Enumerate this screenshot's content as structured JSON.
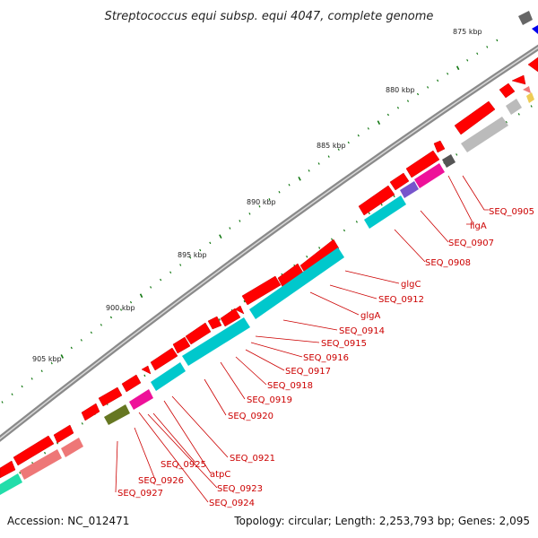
{
  "title": "Streptococcus equi subsp. equi 4047, complete genome",
  "footer": {
    "accession": "Accession: NC_012471",
    "topology": "Topology: circular; Length: 2,253,793 bp; Genes: 2,095"
  },
  "ticks": [
    {
      "label": "875 kbp"
    },
    {
      "label": "880 kbp"
    },
    {
      "label": "885 kbp"
    },
    {
      "label": "890 kbp"
    },
    {
      "label": "895 kbp"
    },
    {
      "label": "900 kbp"
    },
    {
      "label": "905 kbp"
    }
  ],
  "genes": [
    {
      "label": "SEQ_0905"
    },
    {
      "label": "ligA"
    },
    {
      "label": "SEQ_0907"
    },
    {
      "label": "SEQ_0908"
    },
    {
      "label": "glgC"
    },
    {
      "label": "SEQ_0912"
    },
    {
      "label": "glgA"
    },
    {
      "label": "SEQ_0914"
    },
    {
      "label": "SEQ_0915"
    },
    {
      "label": "SEQ_0916"
    },
    {
      "label": "SEQ_0917"
    },
    {
      "label": "SEQ_0918"
    },
    {
      "label": "SEQ_0919"
    },
    {
      "label": "SEQ_0920"
    },
    {
      "label": "SEQ_0921"
    },
    {
      "label": "SEQ_0925"
    },
    {
      "label": "atpC"
    },
    {
      "label": "SEQ_0926"
    },
    {
      "label": "SEQ_0923"
    },
    {
      "label": "SEQ_0927"
    },
    {
      "label": "SEQ_0924"
    }
  ],
  "colors": {
    "forward_gene": "#ff0000",
    "cyan_gene": "#00c8cc",
    "magenta_gene": "#ee1199",
    "olive_gene": "#667722",
    "pink_gene": "#ee7777",
    "grey_gene": "#bbbbbb",
    "backbone": "#777777",
    "tick": "#117711",
    "label": "#cc0000"
  }
}
